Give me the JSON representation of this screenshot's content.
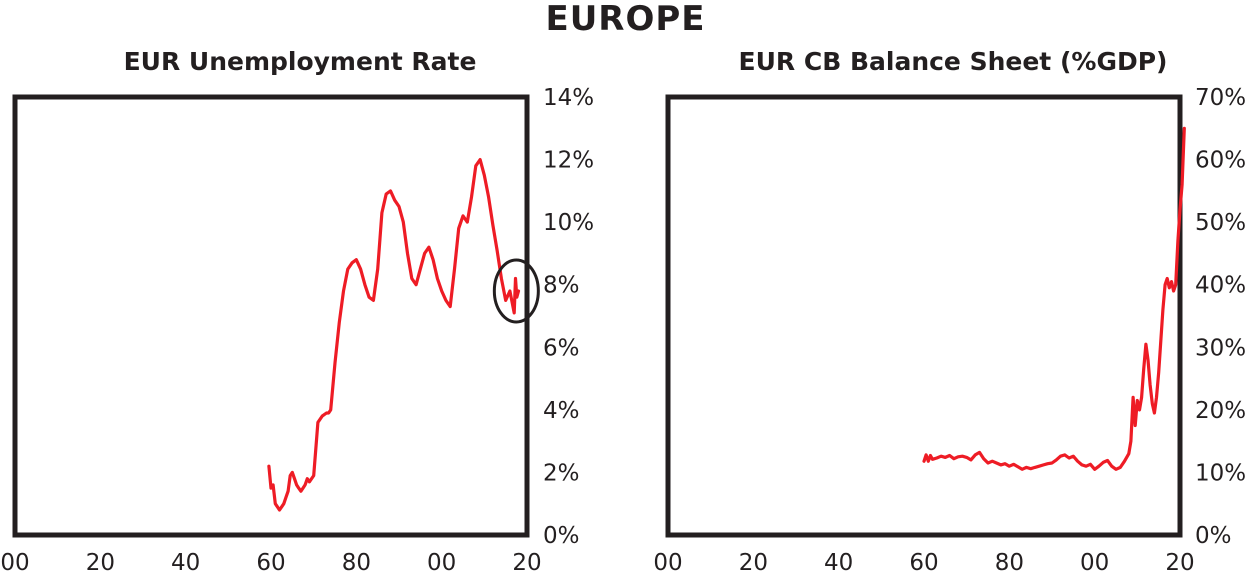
{
  "page": {
    "title": "EUROPE"
  },
  "colors": {
    "line": "#ee1c25",
    "frame": "#231f20"
  },
  "chart_data": [
    {
      "type": "line",
      "title": "EUR Unemployment Rate",
      "x_ticks": [
        "00",
        "20",
        "40",
        "60",
        "80",
        "00",
        "20"
      ],
      "x_tick_years": [
        1900,
        1920,
        1940,
        1960,
        1980,
        2000,
        2020
      ],
      "xlim": [
        1900,
        2020
      ],
      "y_ticks": [
        "0%",
        "2%",
        "4%",
        "6%",
        "8%",
        "10%",
        "12%",
        "14%"
      ],
      "ylim": [
        0,
        14
      ],
      "grid": false,
      "annotation": {
        "type": "circle",
        "x": 2017.5,
        "y": 7.8
      },
      "series": [
        {
          "x": [
            1959.5,
            1960,
            1960.5,
            1961,
            1961.5,
            1962,
            1962.5,
            1963,
            1963.5,
            1964,
            1964.5,
            1965,
            1965.5,
            1966,
            1966.5,
            1967,
            1967.5,
            1968,
            1968.5,
            1969,
            1970,
            1971,
            1972,
            1973,
            1973.5,
            1974,
            1975,
            1976,
            1977,
            1978,
            1979,
            1980,
            1981,
            1982,
            1983,
            1984,
            1985,
            1986,
            1987,
            1988,
            1989,
            1990,
            1991,
            1992,
            1993,
            1994,
            1995,
            1996,
            1997,
            1998,
            1999,
            2000,
            2001,
            2002,
            2003,
            2004,
            2005,
            2006,
            2007,
            2008,
            2009,
            2010,
            2011,
            2012,
            2013,
            2014,
            2015,
            2016,
            2017,
            2017.3,
            2017.6,
            2018
          ],
          "y": [
            2.2,
            1.5,
            1.6,
            1.0,
            0.9,
            0.8,
            0.9,
            1.0,
            1.2,
            1.4,
            1.9,
            2.0,
            1.8,
            1.6,
            1.5,
            1.4,
            1.5,
            1.6,
            1.8,
            1.7,
            1.9,
            3.6,
            3.8,
            3.9,
            3.9,
            4.0,
            5.5,
            6.8,
            7.8,
            8.5,
            8.7,
            8.8,
            8.5,
            8.0,
            7.6,
            7.5,
            8.5,
            10.3,
            10.9,
            11.0,
            10.7,
            10.5,
            10.0,
            9.0,
            8.2,
            8.0,
            8.5,
            9.0,
            9.2,
            8.8,
            8.2,
            7.8,
            7.5,
            7.3,
            8.5,
            9.8,
            10.2,
            10.0,
            10.8,
            11.8,
            12.0,
            11.5,
            10.8,
            9.9,
            9.1,
            8.2,
            7.5,
            7.8,
            7.1,
            8.2,
            7.6,
            7.8
          ]
        }
      ]
    },
    {
      "type": "line",
      "title": "EUR CB Balance Sheet (%GDP)",
      "x_ticks": [
        "00",
        "20",
        "40",
        "60",
        "80",
        "00",
        "20"
      ],
      "x_tick_years": [
        1900,
        1920,
        1940,
        1960,
        1980,
        2000,
        2020
      ],
      "xlim": [
        1900,
        2020
      ],
      "y_ticks": [
        "0%",
        "10%",
        "20%",
        "30%",
        "40%",
        "50%",
        "60%",
        "70%"
      ],
      "ylim": [
        0,
        70
      ],
      "grid": false,
      "series": [
        {
          "x": [
            1960,
            1960.5,
            1961,
            1961.5,
            1962,
            1963,
            1964,
            1965,
            1966,
            1967,
            1968,
            1969,
            1970,
            1971,
            1972,
            1973,
            1974,
            1975,
            1976,
            1977,
            1978,
            1979,
            1980,
            1981,
            1982,
            1983,
            1984,
            1985,
            1986,
            1987,
            1988,
            1989,
            1990,
            1991,
            1992,
            1993,
            1994,
            1995,
            1996,
            1997,
            1998,
            1999,
            2000,
            2001,
            2002,
            2003,
            2004,
            2005,
            2006,
            2007,
            2008,
            2008.5,
            2009,
            2009.5,
            2010,
            2010.5,
            2011,
            2011.5,
            2012,
            2012.5,
            2013,
            2013.5,
            2014,
            2014.5,
            2015,
            2015.5,
            2016,
            2016.5,
            2017,
            2017.5,
            2018,
            2018.5,
            2019,
            2019.5,
            2020,
            2020.5,
            2021
          ],
          "y": [
            11.8,
            12.8,
            11.8,
            12.7,
            12.1,
            12.3,
            12.6,
            12.4,
            12.7,
            12.2,
            12.5,
            12.6,
            12.4,
            12.0,
            12.8,
            13.2,
            12.2,
            11.5,
            11.8,
            11.5,
            11.2,
            11.4,
            11.0,
            11.3,
            10.9,
            10.5,
            10.8,
            10.6,
            10.8,
            11.0,
            11.2,
            11.4,
            11.5,
            12.0,
            12.6,
            12.8,
            12.3,
            12.6,
            11.8,
            11.2,
            11.0,
            11.3,
            10.5,
            11.0,
            11.6,
            11.9,
            11.0,
            10.5,
            10.8,
            11.8,
            13.0,
            15.0,
            22.0,
            17.5,
            21.5,
            20.0,
            22.0,
            26.5,
            30.5,
            28.0,
            24.0,
            21.0,
            19.5,
            22.0,
            26.0,
            31.0,
            36.0,
            40.0,
            41.0,
            39.5,
            40.5,
            39.0,
            40.0,
            47.0,
            52.0,
            56.0,
            65.0
          ]
        }
      ]
    }
  ]
}
